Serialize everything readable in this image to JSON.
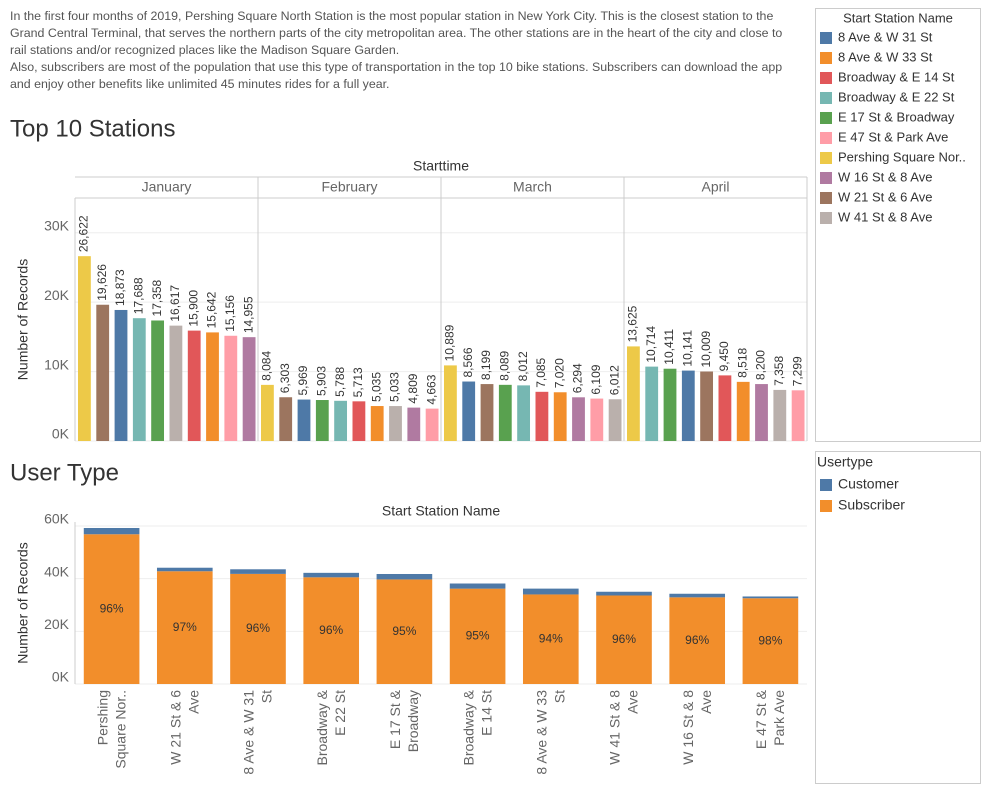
{
  "description": [
    "In the first four months of 2019, Pershing Square North Station is the most popular station in New York City. This is the closest station to the Grand Central Terminal, that serves the northern parts of the city metropolitan area. The other stations are in the heart of the city and close to rail stations and/or recognized places like the Madison Square Garden.",
    "Also, subscribers are most of the population that use this type of transportation in the top 10 bike stations. Subscribers can download the app and enjoy other benefits like unlimited 45 minutes rides for a full year."
  ],
  "chart_data": [
    {
      "type": "panel_bar",
      "title": "Top 10 Stations",
      "x_label": "Starttime",
      "y_label": "Number of Records",
      "ylim": [
        0,
        35000
      ],
      "yticks": [
        {
          "value": 0,
          "label": "0K"
        },
        {
          "value": 10000,
          "label": "10K"
        },
        {
          "value": 20000,
          "label": "20K"
        },
        {
          "value": 30000,
          "label": "30K"
        }
      ],
      "grid": true,
      "legend": {
        "title": "Start Station Name",
        "items": [
          {
            "name": "8 Ave & W 31 St",
            "color": "#4e79a7"
          },
          {
            "name": "8 Ave & W 33 St",
            "color": "#f28e2b"
          },
          {
            "name": "Broadway & E 14 St",
            "color": "#e15759"
          },
          {
            "name": "Broadway & E 22 St",
            "color": "#76b7b2"
          },
          {
            "name": "E 17 St & Broadway",
            "color": "#59a14f"
          },
          {
            "name": "E 47 St & Park Ave",
            "color": "#ff9da7"
          },
          {
            "name": "Pershing Square Nor..",
            "color": "#edc948"
          },
          {
            "name": "W 16 St & 8 Ave",
            "color": "#b07aa1"
          },
          {
            "name": "W 21 St & 6 Ave",
            "color": "#9c755f"
          },
          {
            "name": "W 41 St & 8 Ave",
            "color": "#bab0ac"
          }
        ]
      },
      "panels": [
        {
          "name": "January",
          "stations": [
            "Pershing Square Nor..",
            "W 21 St & 6 Ave",
            "8 Ave & W 31 St",
            "Broadway & E 22 St",
            "E 17 St & Broadway",
            "W 41 St & 8 Ave",
            "Broadway & E 14 St",
            "8 Ave & W 33 St",
            "E 47 St & Park Ave",
            "W 16 St & 8 Ave"
          ],
          "values": [
            26622,
            19626,
            18873,
            17688,
            17358,
            16617,
            15900,
            15642,
            15156,
            14955
          ],
          "value_labels": [
            "26,622",
            "19,626",
            "18,873",
            "17,688",
            "17,358",
            "16,617",
            "15,900",
            "15,642",
            "15,156",
            "14,955"
          ]
        },
        {
          "name": "February",
          "stations": [
            "Pershing Square Nor..",
            "W 21 St & 6 Ave",
            "8 Ave & W 31 St",
            "E 17 St & Broadway",
            "Broadway & E 22 St",
            "Broadway & E 14 St",
            "8 Ave & W 33 St",
            "W 41 St & 8 Ave",
            "W 16 St & 8 Ave",
            "E 47 St & Park Ave"
          ],
          "values": [
            8084,
            6303,
            5969,
            5903,
            5788,
            5713,
            5035,
            5033,
            4809,
            4663
          ],
          "value_labels": [
            "8,084",
            "6,303",
            "5,969",
            "5,903",
            "5,788",
            "5,713",
            "5,035",
            "5,033",
            "4,809",
            "4,663"
          ]
        },
        {
          "name": "March",
          "stations": [
            "Pershing Square Nor..",
            "8 Ave & W 31 St",
            "W 21 St & 6 Ave",
            "E 17 St & Broadway",
            "Broadway & E 22 St",
            "Broadway & E 14 St",
            "8 Ave & W 33 St",
            "W 16 St & 8 Ave",
            "E 47 St & Park Ave",
            "W 41 St & 8 Ave"
          ],
          "values": [
            10889,
            8566,
            8199,
            8089,
            8012,
            7085,
            7020,
            6294,
            6109,
            6012
          ],
          "value_labels": [
            "10,889",
            "8,566",
            "8,199",
            "8,089",
            "8,012",
            "7,085",
            "7,020",
            "6,294",
            "6,109",
            "6,012"
          ]
        },
        {
          "name": "April",
          "stations": [
            "Pershing Square Nor..",
            "Broadway & E 22 St",
            "E 17 St & Broadway",
            "8 Ave & W 31 St",
            "W 21 St & 6 Ave",
            "Broadway & E 14 St",
            "8 Ave & W 33 St",
            "W 16 St & 8 Ave",
            "W 41 St & 8 Ave",
            "E 47 St & Park Ave"
          ],
          "values": [
            13625,
            10714,
            10411,
            10141,
            10009,
            9450,
            8518,
            8200,
            7358,
            7299
          ],
          "value_labels": [
            "13,625",
            "10,714",
            "10,411",
            "10,141",
            "10,009",
            "9,450",
            "8,518",
            "8,200",
            "7,358",
            "7,299"
          ]
        }
      ]
    },
    {
      "type": "stacked_bar",
      "title": "User Type",
      "x_label": "Start Station Name",
      "y_label": "Number of Records",
      "ylim": [
        0,
        61500
      ],
      "yticks": [
        {
          "value": 0,
          "label": "0K"
        },
        {
          "value": 20000,
          "label": "20K"
        },
        {
          "value": 40000,
          "label": "40K"
        },
        {
          "value": 60000,
          "label": "60K"
        }
      ],
      "grid": true,
      "legend_title": "Usertype",
      "categories": [
        [
          "Pershing",
          "Square Nor.."
        ],
        [
          "W 21 St & 6",
          "Ave"
        ],
        [
          "8 Ave & W 31",
          "St"
        ],
        [
          "Broadway &",
          "E 22 St"
        ],
        [
          "E 17 St &",
          "Broadway"
        ],
        [
          "Broadway &",
          "E 14 St"
        ],
        [
          "8 Ave & W 33",
          "St"
        ],
        [
          "W 41 St & 8",
          "Ave"
        ],
        [
          "W 16 St & 8",
          "Ave"
        ],
        [
          "E 47 St &",
          "Park Ave"
        ]
      ],
      "series": [
        {
          "name": "Subscriber",
          "color": "#f28e2b",
          "values": [
            56850,
            42800,
            41800,
            40500,
            39700,
            36200,
            34000,
            33600,
            32900,
            32550
          ],
          "share_labels": [
            "96%",
            "97%",
            "96%",
            "96%",
            "95%",
            "95%",
            "94%",
            "96%",
            "96%",
            "98%"
          ]
        },
        {
          "name": "Customer",
          "color": "#4e79a7",
          "values": [
            2370,
            1340,
            1750,
            1700,
            2060,
            1950,
            2210,
            1420,
            1360,
            680
          ]
        }
      ]
    }
  ]
}
